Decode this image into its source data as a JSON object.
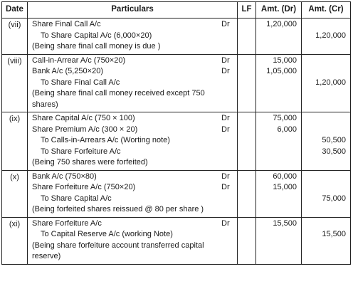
{
  "headers": {
    "date": "Date",
    "particulars": "Particulars",
    "lf": "LF",
    "amt_dr": "Amt. (Dr)",
    "amt_cr": "Amt. (Cr)"
  },
  "entries": [
    {
      "date": "(vii)",
      "lines": [
        {
          "text": "Share Final Call A/c",
          "dr": "Dr",
          "amt_dr": "1,20,000",
          "amt_cr": ""
        },
        {
          "text": "To Share Capital A/c (6,000×20)",
          "to": true,
          "dr": "",
          "amt_dr": "",
          "amt_cr": "1,20,000"
        },
        {
          "text": "(Being share final call money is due )",
          "dr": "",
          "amt_dr": "",
          "amt_cr": ""
        }
      ]
    },
    {
      "date": "(viii)",
      "lines": [
        {
          "text": "Call-in-Arrear A/c (750×20)",
          "dr": "Dr",
          "amt_dr": "15,000",
          "amt_cr": ""
        },
        {
          "text": "Bank A/c (5,250×20)",
          "dr": "Dr",
          "amt_dr": "1,05,000",
          "amt_cr": ""
        },
        {
          "text": "To Share Final Call A/c",
          "to": true,
          "dr": "",
          "amt_dr": "",
          "amt_cr": "1,20,000"
        },
        {
          "text": "(Being share final call money received except 750",
          "dr": "",
          "amt_dr": "",
          "amt_cr": ""
        },
        {
          "text": "shares)",
          "dr": "",
          "amt_dr": "",
          "amt_cr": ""
        }
      ]
    },
    {
      "date": "(ix)",
      "lines": [
        {
          "text": "Share Capital A/c (750 × 100)",
          "dr": "Dr",
          "amt_dr": "75,000",
          "amt_cr": ""
        },
        {
          "text": "Share Premium A/c (300 × 20)",
          "dr": "Dr",
          "amt_dr": "6,000",
          "amt_cr": ""
        },
        {
          "text": "To Calls-in-Arrears A/c (Worting note)",
          "to": true,
          "dr": "",
          "amt_dr": "",
          "amt_cr": "50,500"
        },
        {
          "text": "To Share Forfeiture A/c",
          "to": true,
          "dr": "",
          "amt_dr": "",
          "amt_cr": "30,500"
        },
        {
          "text": "(Being 750 shares were forfeited)",
          "dr": "",
          "amt_dr": "",
          "amt_cr": ""
        }
      ]
    },
    {
      "date": "(x)",
      "lines": [
        {
          "text": "Bank A/c (750×80)",
          "dr": "Dr",
          "amt_dr": "60,000",
          "amt_cr": ""
        },
        {
          "text": "Share Forfeiture A/c (750×20)",
          "dr": "Dr",
          "amt_dr": "15,000",
          "amt_cr": ""
        },
        {
          "text": "To Share Capital A/c",
          "to": true,
          "dr": "",
          "amt_dr": "",
          "amt_cr": "75,000"
        },
        {
          "text": "(Being forfeited shares reissued @ 80 per share )",
          "dr": "",
          "amt_dr": "",
          "amt_cr": ""
        }
      ]
    },
    {
      "date": "(xi)",
      "lines": [
        {
          "text": "Share Forfeiture A/c",
          "dr": "Dr",
          "amt_dr": "15,500",
          "amt_cr": ""
        },
        {
          "text": "To Capital Reserve A/c (working Note)",
          "to": true,
          "dr": "",
          "amt_dr": "",
          "amt_cr": "15,500"
        },
        {
          "text": "(Being share forfeiture account transferred capital",
          "dr": "",
          "amt_dr": "",
          "amt_cr": ""
        },
        {
          "text": "reserve)",
          "dr": "",
          "amt_dr": "",
          "amt_cr": ""
        }
      ]
    }
  ]
}
